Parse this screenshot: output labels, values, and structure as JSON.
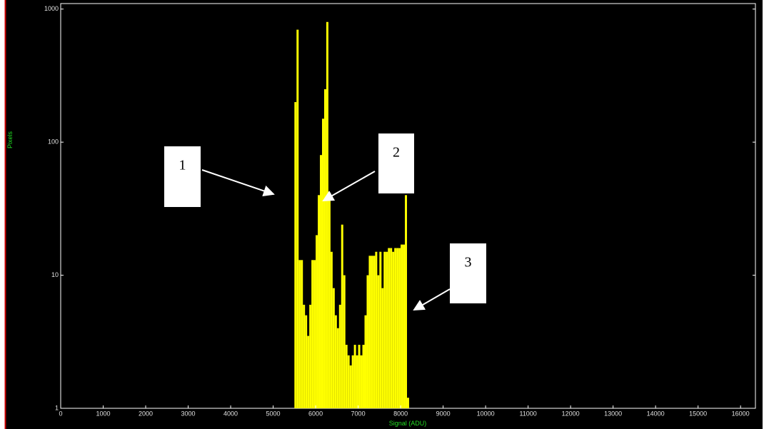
{
  "chart_data": {
    "type": "histogram",
    "x_label": "Signal (ADU)",
    "y_label": "Pixels",
    "bins": [
      5500,
      5550,
      5600,
      5650,
      5700,
      5750,
      5800,
      5850,
      5900,
      5950,
      6000,
      6050,
      6100,
      6150,
      6200,
      6250,
      6300,
      6350,
      6400,
      6450,
      6500,
      6550,
      6600,
      6650,
      6700,
      6750,
      6800,
      6850,
      6900,
      6950,
      7000,
      7050,
      7100,
      7150,
      7200,
      7250,
      7300,
      7350,
      7400,
      7450,
      7500,
      7550,
      7600,
      7650,
      7700,
      7750,
      7800,
      7850,
      7900,
      7950,
      8000,
      8050,
      8100,
      8150,
      8200
    ],
    "values": [
      200,
      700,
      13,
      13,
      6,
      5,
      3.5,
      6,
      13,
      13,
      20,
      40,
      80,
      150,
      250,
      800,
      40,
      15,
      8,
      5,
      4,
      6,
      24,
      10,
      3,
      2.5,
      2.1,
      2.5,
      3,
      2.5,
      3,
      2.5,
      3,
      5,
      10,
      14,
      14,
      14,
      15,
      10,
      15,
      8,
      15,
      15,
      16,
      16,
      15,
      16,
      16,
      16,
      17,
      17,
      40,
      1.2
    ],
    "color": "#ffff00",
    "xlim": [
      0,
      16350
    ],
    "xticks": [
      0,
      1000,
      2000,
      3000,
      4000,
      5000,
      6000,
      7000,
      8000,
      9000,
      10000,
      11000,
      12000,
      13000,
      14000,
      15000,
      16000
    ],
    "ylim": [
      1,
      1100
    ],
    "y_log": true,
    "yticks": [
      1,
      10,
      100,
      1000
    ],
    "annotations": [
      "1",
      "2",
      "3"
    ]
  }
}
